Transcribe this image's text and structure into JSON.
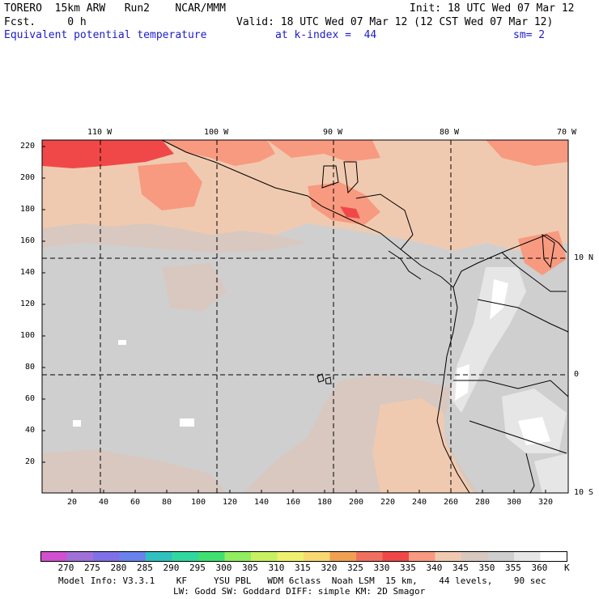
{
  "header": {
    "model": "TORERO  15km ARW   Run2    NCAR/MMM",
    "init": "Init: 18 UTC Wed 07 Mar 12",
    "fcst": "Fcst.     0 h",
    "valid": "Valid: 18 UTC Wed 07 Mar 12 (12 CST Wed 07 Mar 12)",
    "field": "Equivalent potential temperature",
    "level": "at k-index =  44",
    "smooth": "sm= 2"
  },
  "map": {
    "top_lon_labels": [
      "110 W",
      "100 W",
      "90 W",
      "80 W",
      "70 W"
    ],
    "right_lat_labels": [
      "10 N",
      "0",
      "10 S"
    ],
    "left_ticks": [
      "220",
      "200",
      "180",
      "160",
      "140",
      "120",
      "100",
      "80",
      "60",
      "40",
      "20"
    ],
    "bottom_ticks": [
      "20",
      "40",
      "60",
      "80",
      "100",
      "120",
      "140",
      "160",
      "180",
      "200",
      "220",
      "240",
      "260",
      "280",
      "300",
      "320"
    ]
  },
  "colorbar": {
    "labels": [
      "270",
      "275",
      "280",
      "285",
      "290",
      "295",
      "300",
      "305",
      "310",
      "315",
      "320",
      "325",
      "330",
      "335",
      "340",
      "345",
      "350",
      "355",
      "360"
    ],
    "unit": "K",
    "colors": [
      "#d050d0",
      "#a070d8",
      "#8070e8",
      "#6a82ee",
      "#30c0c0",
      "#30d8a0",
      "#40e070",
      "#90ee60",
      "#c8f060",
      "#f0f070",
      "#f8d870",
      "#f0a050",
      "#f07060",
      "#f04848",
      "#f89a80",
      "#f0cab0",
      "#d8c8c0",
      "#cfcfcf",
      "#e6e6e6",
      "#ffffff"
    ]
  },
  "footer": {
    "line1": "Model Info: V3.3.1    KF     YSU PBL   WDM 6class  Noah LSM  15 km,    44 levels,    90 sec",
    "line2": "LW: Godd SW: Goddard DIFF: simple KM: 2D Smagor"
  }
}
